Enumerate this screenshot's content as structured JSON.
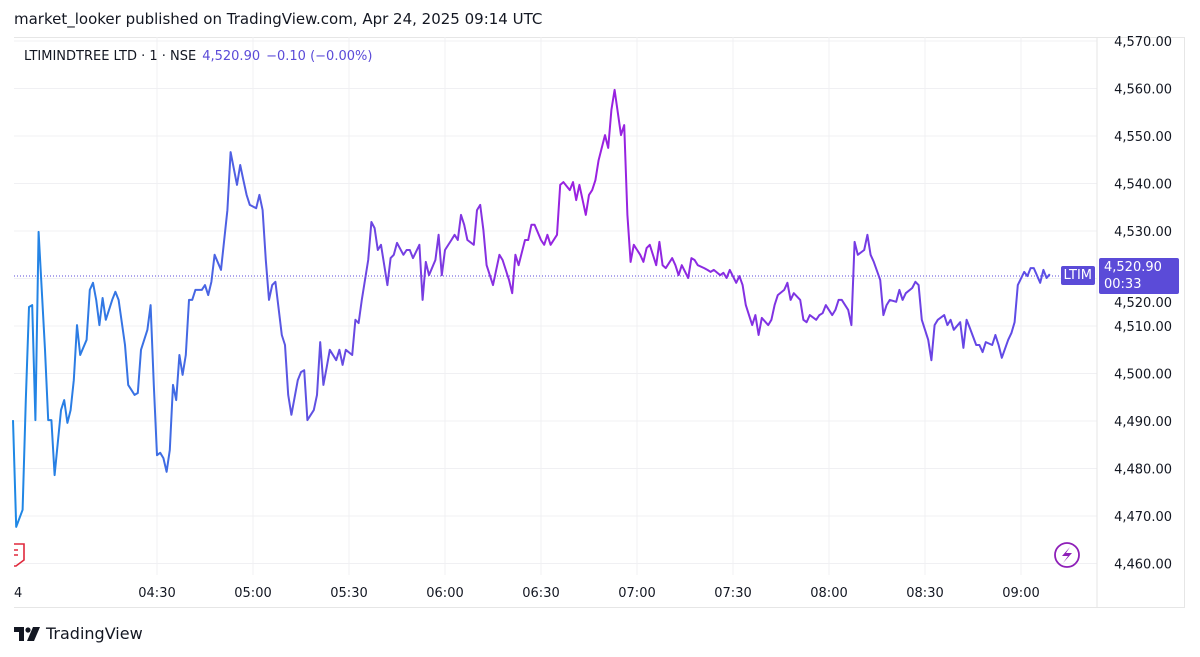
{
  "header": {
    "publisher_line": "market_looker published on TradingView.com, Apr 24, 2025 09:14 UTC"
  },
  "legend": {
    "symbol": "LTIMINDTREE LTD · 1 · NSE",
    "price": "4,520.90",
    "change": "−0.10 (−0.00%)"
  },
  "price_tag": {
    "ticker": "LTIM",
    "price": "4,520.90",
    "countdown": "00:33"
  },
  "brand": {
    "name": "TradingView"
  },
  "colors": {
    "line_start": "#1e88e5",
    "line_mid": "#9c1fe0",
    "line_end": "#5a4fe6",
    "accent": "#5b4bd8",
    "grid": "#f0f0f3"
  },
  "icons": {
    "left_marker": "earnings-flag-icon",
    "right_marker": "lightning-icon"
  },
  "chart_data": {
    "type": "line",
    "title": "LTIMINDTREE LTD · 1 · NSE",
    "ylim": [
      4460,
      4570
    ],
    "grid": true,
    "y_ticks": [
      "4,570.00",
      "4,560.00",
      "4,550.00",
      "4,540.00",
      "4,530.00",
      "4,520.00",
      "4,510.00",
      "4,500.00",
      "4,490.00",
      "4,480.00",
      "4,470.00",
      "4,460.00"
    ],
    "x_ticks": [
      "4",
      "04:30",
      "05:00",
      "05:30",
      "06:00",
      "06:30",
      "07:00",
      "07:30",
      "08:00",
      "08:30",
      "09:00"
    ],
    "last_price": 4520.9,
    "points": [
      [
        "03:45",
        4490.2
      ],
      [
        "03:46",
        4467.7
      ],
      [
        "03:48",
        4471.3
      ],
      [
        "03:49",
        4494.4
      ],
      [
        "03:50",
        4514.0
      ],
      [
        "03:51",
        4514.4
      ],
      [
        "03:52",
        4490.2
      ],
      [
        "03:53",
        4529.8
      ],
      [
        "03:55",
        4505.0
      ],
      [
        "03:56",
        4490.2
      ],
      [
        "03:57",
        4490.2
      ],
      [
        "03:58",
        4478.6
      ],
      [
        "04:00",
        4492.3
      ],
      [
        "04:01",
        4494.4
      ],
      [
        "04:02",
        4489.6
      ],
      [
        "04:03",
        4492.3
      ],
      [
        "04:04",
        4498.6
      ],
      [
        "04:05",
        4510.2
      ],
      [
        "04:06",
        4503.9
      ],
      [
        "04:08",
        4507.1
      ],
      [
        "04:09",
        4517.6
      ],
      [
        "04:10",
        4519.1
      ],
      [
        "04:11",
        4515.5
      ],
      [
        "04:12",
        4510.2
      ],
      [
        "04:13",
        4515.9
      ],
      [
        "04:14",
        4511.3
      ],
      [
        "04:15",
        4513.4
      ],
      [
        "04:16",
        4515.5
      ],
      [
        "04:17",
        4517.2
      ],
      [
        "04:18",
        4515.5
      ],
      [
        "04:20",
        4506.0
      ],
      [
        "04:21",
        4497.6
      ],
      [
        "04:23",
        4495.5
      ],
      [
        "04:24",
        4495.9
      ],
      [
        "04:25",
        4505.0
      ],
      [
        "04:27",
        4509.2
      ],
      [
        "04:28",
        4514.4
      ],
      [
        "04:29",
        4497.6
      ],
      [
        "04:30",
        4482.8
      ],
      [
        "04:31",
        4483.3
      ],
      [
        "04:32",
        4482.2
      ],
      [
        "04:33",
        4479.3
      ],
      [
        "04:34",
        4483.9
      ],
      [
        "04:35",
        4497.6
      ],
      [
        "04:36",
        4494.4
      ],
      [
        "04:37",
        4503.9
      ],
      [
        "04:38",
        4499.7
      ],
      [
        "04:39",
        4503.9
      ],
      [
        "04:40",
        4515.5
      ],
      [
        "04:41",
        4515.5
      ],
      [
        "04:42",
        4517.6
      ],
      [
        "04:44",
        4517.6
      ],
      [
        "04:45",
        4518.6
      ],
      [
        "04:46",
        4516.5
      ],
      [
        "04:47",
        4519.3
      ],
      [
        "04:48",
        4525.0
      ],
      [
        "04:50",
        4521.8
      ],
      [
        "04:51",
        4528.1
      ],
      [
        "04:52",
        4534.4
      ],
      [
        "04:53",
        4546.6
      ],
      [
        "04:55",
        4539.7
      ],
      [
        "04:56",
        4543.9
      ],
      [
        "04:57",
        4540.7
      ],
      [
        "04:58",
        4537.6
      ],
      [
        "04:59",
        4535.5
      ],
      [
        "05:01",
        4534.8
      ],
      [
        "05:02",
        4537.6
      ],
      [
        "05:03",
        4534.4
      ],
      [
        "05:04",
        4523.9
      ],
      [
        "05:05",
        4515.5
      ],
      [
        "05:06",
        4518.6
      ],
      [
        "05:07",
        4519.3
      ],
      [
        "05:09",
        4508.1
      ],
      [
        "05:10",
        4506.0
      ],
      [
        "05:11",
        4495.5
      ],
      [
        "05:12",
        4491.3
      ],
      [
        "05:14",
        4498.6
      ],
      [
        "05:15",
        4500.3
      ],
      [
        "05:16",
        4500.7
      ],
      [
        "05:17",
        4490.2
      ],
      [
        "05:19",
        4492.3
      ],
      [
        "05:20",
        4495.5
      ],
      [
        "05:21",
        4506.6
      ],
      [
        "05:22",
        4497.6
      ],
      [
        "05:23",
        4501.2
      ],
      [
        "05:24",
        4505.0
      ],
      [
        "05:26",
        4502.8
      ],
      [
        "05:27",
        4505.0
      ],
      [
        "05:28",
        4501.8
      ],
      [
        "05:29",
        4505.0
      ],
      [
        "05:31",
        4503.9
      ],
      [
        "05:32",
        4511.3
      ],
      [
        "05:33",
        4510.6
      ],
      [
        "05:34",
        4515.5
      ],
      [
        "05:36",
        4523.9
      ],
      [
        "05:37",
        4531.9
      ],
      [
        "05:38",
        4530.6
      ],
      [
        "05:39",
        4526.0
      ],
      [
        "05:40",
        4527.1
      ],
      [
        "05:42",
        4518.6
      ],
      [
        "05:43",
        4524.3
      ],
      [
        "05:44",
        4525.0
      ],
      [
        "05:45",
        4527.5
      ],
      [
        "05:47",
        4525.0
      ],
      [
        "05:48",
        4526.0
      ],
      [
        "05:49",
        4526.0
      ],
      [
        "05:50",
        4524.3
      ],
      [
        "05:52",
        4527.1
      ],
      [
        "05:53",
        4515.5
      ],
      [
        "05:54",
        4523.5
      ],
      [
        "05:55",
        4520.7
      ],
      [
        "05:57",
        4523.9
      ],
      [
        "05:58",
        4529.2
      ],
      [
        "05:59",
        4520.7
      ],
      [
        "06:00",
        4526.0
      ],
      [
        "06:02",
        4528.1
      ],
      [
        "06:03",
        4529.2
      ],
      [
        "06:04",
        4528.1
      ],
      [
        "06:05",
        4533.4
      ],
      [
        "06:06",
        4531.3
      ],
      [
        "06:07",
        4528.1
      ],
      [
        "06:09",
        4527.1
      ],
      [
        "06:10",
        4534.4
      ],
      [
        "06:11",
        4535.5
      ],
      [
        "06:12",
        4530.2
      ],
      [
        "06:13",
        4522.8
      ],
      [
        "06:15",
        4518.6
      ],
      [
        "06:16",
        4521.8
      ],
      [
        "06:17",
        4525.0
      ],
      [
        "06:18",
        4523.9
      ],
      [
        "06:20",
        4519.7
      ],
      [
        "06:21",
        4516.9
      ],
      [
        "06:22",
        4525.0
      ],
      [
        "06:23",
        4522.8
      ],
      [
        "06:25",
        4528.1
      ],
      [
        "06:26",
        4528.1
      ],
      [
        "06:27",
        4531.3
      ],
      [
        "06:28",
        4531.3
      ],
      [
        "06:30",
        4528.1
      ],
      [
        "06:31",
        4527.1
      ],
      [
        "06:32",
        4529.2
      ],
      [
        "06:33",
        4527.1
      ],
      [
        "06:35",
        4529.2
      ],
      [
        "06:36",
        4539.7
      ],
      [
        "06:37",
        4540.3
      ],
      [
        "06:39",
        4538.6
      ],
      [
        "06:40",
        4540.3
      ],
      [
        "06:41",
        4536.5
      ],
      [
        "06:42",
        4539.7
      ],
      [
        "06:44",
        4533.4
      ],
      [
        "06:45",
        4537.6
      ],
      [
        "06:46",
        4538.6
      ],
      [
        "06:47",
        4540.7
      ],
      [
        "06:48",
        4544.9
      ],
      [
        "06:50",
        4550.2
      ],
      [
        "06:51",
        4547.5
      ],
      [
        "06:52",
        4555.5
      ],
      [
        "06:53",
        4559.7
      ],
      [
        "06:55",
        4550.2
      ],
      [
        "06:56",
        4552.3
      ],
      [
        "06:57",
        4533.4
      ],
      [
        "06:58",
        4523.5
      ],
      [
        "06:59",
        4527.1
      ],
      [
        "07:01",
        4525.0
      ],
      [
        "07:02",
        4523.5
      ],
      [
        "07:03",
        4526.4
      ],
      [
        "07:04",
        4527.1
      ],
      [
        "07:06",
        4522.8
      ],
      [
        "07:07",
        4527.7
      ],
      [
        "07:08",
        4522.8
      ],
      [
        "07:09",
        4522.2
      ],
      [
        "07:11",
        4524.3
      ],
      [
        "07:12",
        4522.8
      ],
      [
        "07:13",
        4520.7
      ],
      [
        "07:14",
        4522.8
      ],
      [
        "07:16",
        4520.1
      ],
      [
        "07:17",
        4524.3
      ],
      [
        "07:18",
        4523.9
      ],
      [
        "07:19",
        4522.8
      ],
      [
        "07:21",
        4522.2
      ],
      [
        "07:22",
        4521.8
      ],
      [
        "07:23",
        4521.4
      ],
      [
        "07:24",
        4521.8
      ],
      [
        "07:26",
        4520.7
      ],
      [
        "07:27",
        4521.2
      ],
      [
        "07:28",
        4520.1
      ],
      [
        "07:29",
        4521.8
      ],
      [
        "07:31",
        4519.1
      ],
      [
        "07:32",
        4520.5
      ],
      [
        "07:33",
        4518.6
      ],
      [
        "07:34",
        4514.4
      ],
      [
        "07:36",
        4510.2
      ],
      [
        "07:37",
        4512.3
      ],
      [
        "07:38",
        4508.1
      ],
      [
        "07:39",
        4511.7
      ],
      [
        "07:41",
        4510.2
      ],
      [
        "07:42",
        4511.3
      ],
      [
        "07:43",
        4514.4
      ],
      [
        "07:44",
        4516.5
      ],
      [
        "07:46",
        4517.6
      ],
      [
        "07:47",
        4519.1
      ],
      [
        "07:48",
        4515.5
      ],
      [
        "07:49",
        4516.9
      ],
      [
        "07:51",
        4515.5
      ],
      [
        "07:52",
        4511.3
      ],
      [
        "07:53",
        4510.8
      ],
      [
        "07:54",
        4512.3
      ],
      [
        "07:56",
        4511.3
      ],
      [
        "07:57",
        4512.3
      ],
      [
        "07:58",
        4512.7
      ],
      [
        "07:59",
        4514.4
      ],
      [
        "08:01",
        4512.3
      ],
      [
        "08:02",
        4513.4
      ],
      [
        "08:03",
        4515.5
      ],
      [
        "08:04",
        4515.5
      ],
      [
        "08:06",
        4513.4
      ],
      [
        "08:07",
        4510.2
      ],
      [
        "08:08",
        4527.7
      ],
      [
        "08:09",
        4525.0
      ],
      [
        "08:11",
        4526.0
      ],
      [
        "08:12",
        4529.2
      ],
      [
        "08:13",
        4525.0
      ],
      [
        "08:14",
        4523.5
      ],
      [
        "08:16",
        4519.7
      ],
      [
        "08:17",
        4512.3
      ],
      [
        "08:18",
        4514.4
      ],
      [
        "08:19",
        4515.5
      ],
      [
        "08:21",
        4515.1
      ],
      [
        "08:22",
        4517.6
      ],
      [
        "08:23",
        4515.5
      ],
      [
        "08:24",
        4516.9
      ],
      [
        "08:26",
        4518.0
      ],
      [
        "08:27",
        4519.3
      ],
      [
        "08:28",
        4518.6
      ],
      [
        "08:29",
        4511.3
      ],
      [
        "08:31",
        4507.1
      ],
      [
        "08:32",
        4502.8
      ],
      [
        "08:33",
        4510.2
      ],
      [
        "08:34",
        4511.3
      ],
      [
        "08:36",
        4512.3
      ],
      [
        "08:37",
        4510.2
      ],
      [
        "08:38",
        4511.3
      ],
      [
        "08:39",
        4509.2
      ],
      [
        "08:41",
        4510.8
      ],
      [
        "08:42",
        4505.4
      ],
      [
        "08:43",
        4511.3
      ],
      [
        "08:44",
        4509.6
      ],
      [
        "08:46",
        4506.0
      ],
      [
        "08:47",
        4506.0
      ],
      [
        "08:48",
        4504.5
      ],
      [
        "08:49",
        4506.6
      ],
      [
        "08:51",
        4506.0
      ],
      [
        "08:52",
        4508.1
      ],
      [
        "08:53",
        4506.0
      ],
      [
        "08:54",
        4503.3
      ],
      [
        "08:56",
        4507.1
      ],
      [
        "08:57",
        4508.5
      ],
      [
        "08:58",
        4510.8
      ],
      [
        "08:59",
        4518.6
      ],
      [
        "09:01",
        4521.4
      ],
      [
        "09:02",
        4520.5
      ],
      [
        "09:03",
        4522.2
      ],
      [
        "09:04",
        4522.2
      ],
      [
        "09:06",
        4519.1
      ],
      [
        "09:07",
        4521.8
      ],
      [
        "09:08",
        4520.1
      ],
      [
        "09:09",
        4520.9
      ]
    ]
  }
}
